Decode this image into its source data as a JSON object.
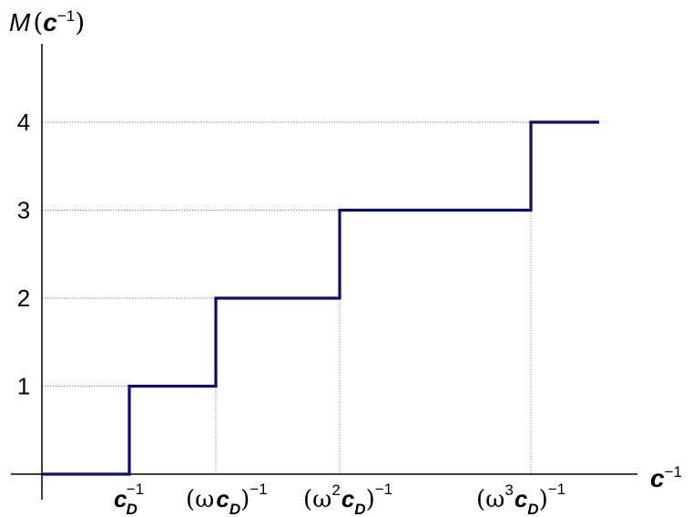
{
  "chart_data": {
    "type": "line",
    "step": "post",
    "xlabel": "c^{-1}",
    "ylabel": "M(c^{-1})",
    "x_ticks": [
      {
        "x": 1,
        "label": "c_D^{-1}"
      },
      {
        "x": 2,
        "label": "(ω c_D)^{-1}"
      },
      {
        "x": 3,
        "label": "(ω^2 c_D)^{-1}"
      },
      {
        "x": 4,
        "label": "(ω^3 c_D)^{-1}"
      }
    ],
    "y_ticks": [
      1,
      2,
      3,
      4
    ],
    "series": [
      {
        "x": [
          0,
          1,
          2,
          3,
          4,
          4.75
        ],
        "y": [
          0,
          1,
          2,
          3,
          4,
          4
        ]
      }
    ],
    "grid": "dotted",
    "line_color": "#0a0a78"
  }
}
